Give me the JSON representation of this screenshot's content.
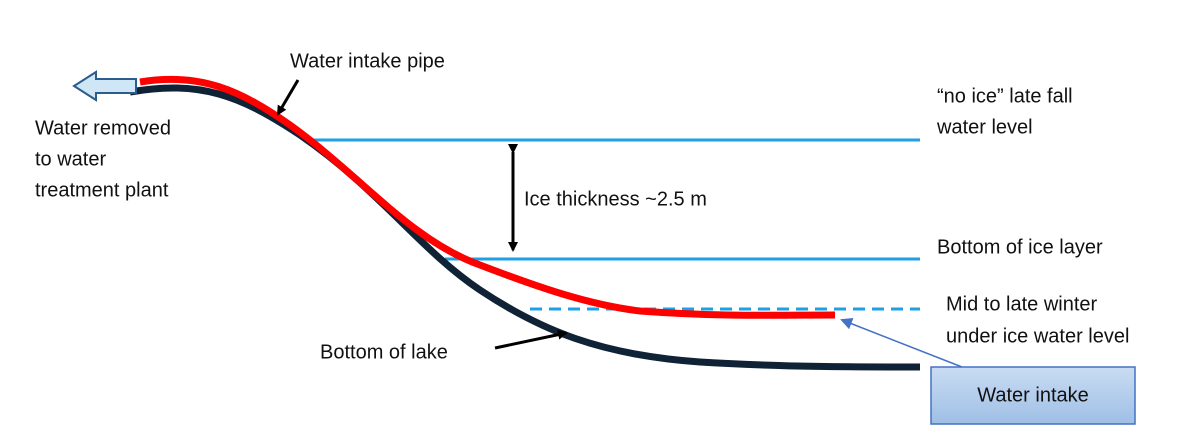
{
  "labels": {
    "pipe": "Water intake pipe",
    "removed": [
      "Water removed",
      "to water",
      "treatment plant"
    ],
    "no_ice": [
      "“no ice” late fall",
      "water level"
    ],
    "ice_thickness": "Ice thickness ~2.5 m",
    "ice_bottom": "Bottom of ice layer",
    "winter_level": [
      "Mid to late winter",
      "under ice water level"
    ],
    "lake_bottom": "Bottom of lake",
    "intake": "Water intake"
  }
}
